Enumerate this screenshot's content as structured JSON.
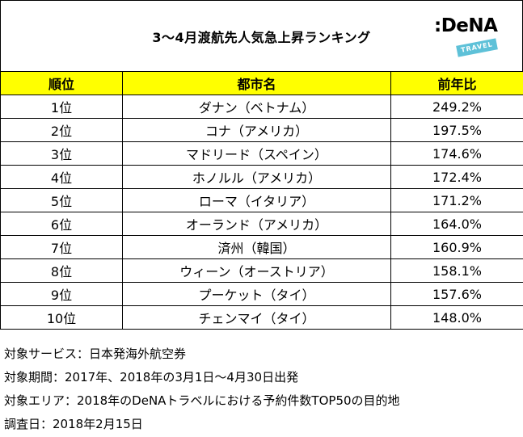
{
  "header": {
    "title": "3〜4月渡航先人気急上昇ランキング",
    "logo": {
      "word": ":DeNA",
      "sub": "TRAVEL"
    }
  },
  "table": {
    "columns": [
      "順位",
      "都市名",
      "前年比"
    ],
    "rows": [
      {
        "rank": "1位",
        "city": "ダナン（ベトナム）",
        "ratio": "249.2%"
      },
      {
        "rank": "2位",
        "city": "コナ（アメリカ）",
        "ratio": "197.5%"
      },
      {
        "rank": "3位",
        "city": "マドリード（スペイン）",
        "ratio": "174.6%"
      },
      {
        "rank": "4位",
        "city": "ホノルル（アメリカ）",
        "ratio": "172.4%"
      },
      {
        "rank": "5位",
        "city": "ローマ（イタリア）",
        "ratio": "171.2%"
      },
      {
        "rank": "6位",
        "city": "オーランド（アメリカ）",
        "ratio": "164.0%"
      },
      {
        "rank": "7位",
        "city": "済州（韓国）",
        "ratio": "160.9%"
      },
      {
        "rank": "8位",
        "city": "ウィーン（オーストリア）",
        "ratio": "158.1%"
      },
      {
        "rank": "9位",
        "city": "プーケット（タイ）",
        "ratio": "157.6%"
      },
      {
        "rank": "10位",
        "city": "チェンマイ（タイ）",
        "ratio": "148.0%"
      }
    ]
  },
  "notes": [
    "対象サービス：日本発海外航空券",
    "対象期間：2017年、2018年の3月1日〜4月30日出発",
    "対象エリア：2018年のDeNAトラベルにおける予約件数TOP50の目的地",
    "調査日：2018年2月15日"
  ],
  "colors": {
    "header_fill": "#ffff00",
    "logo_accent": "#5ec1d8",
    "border": "#000000"
  }
}
